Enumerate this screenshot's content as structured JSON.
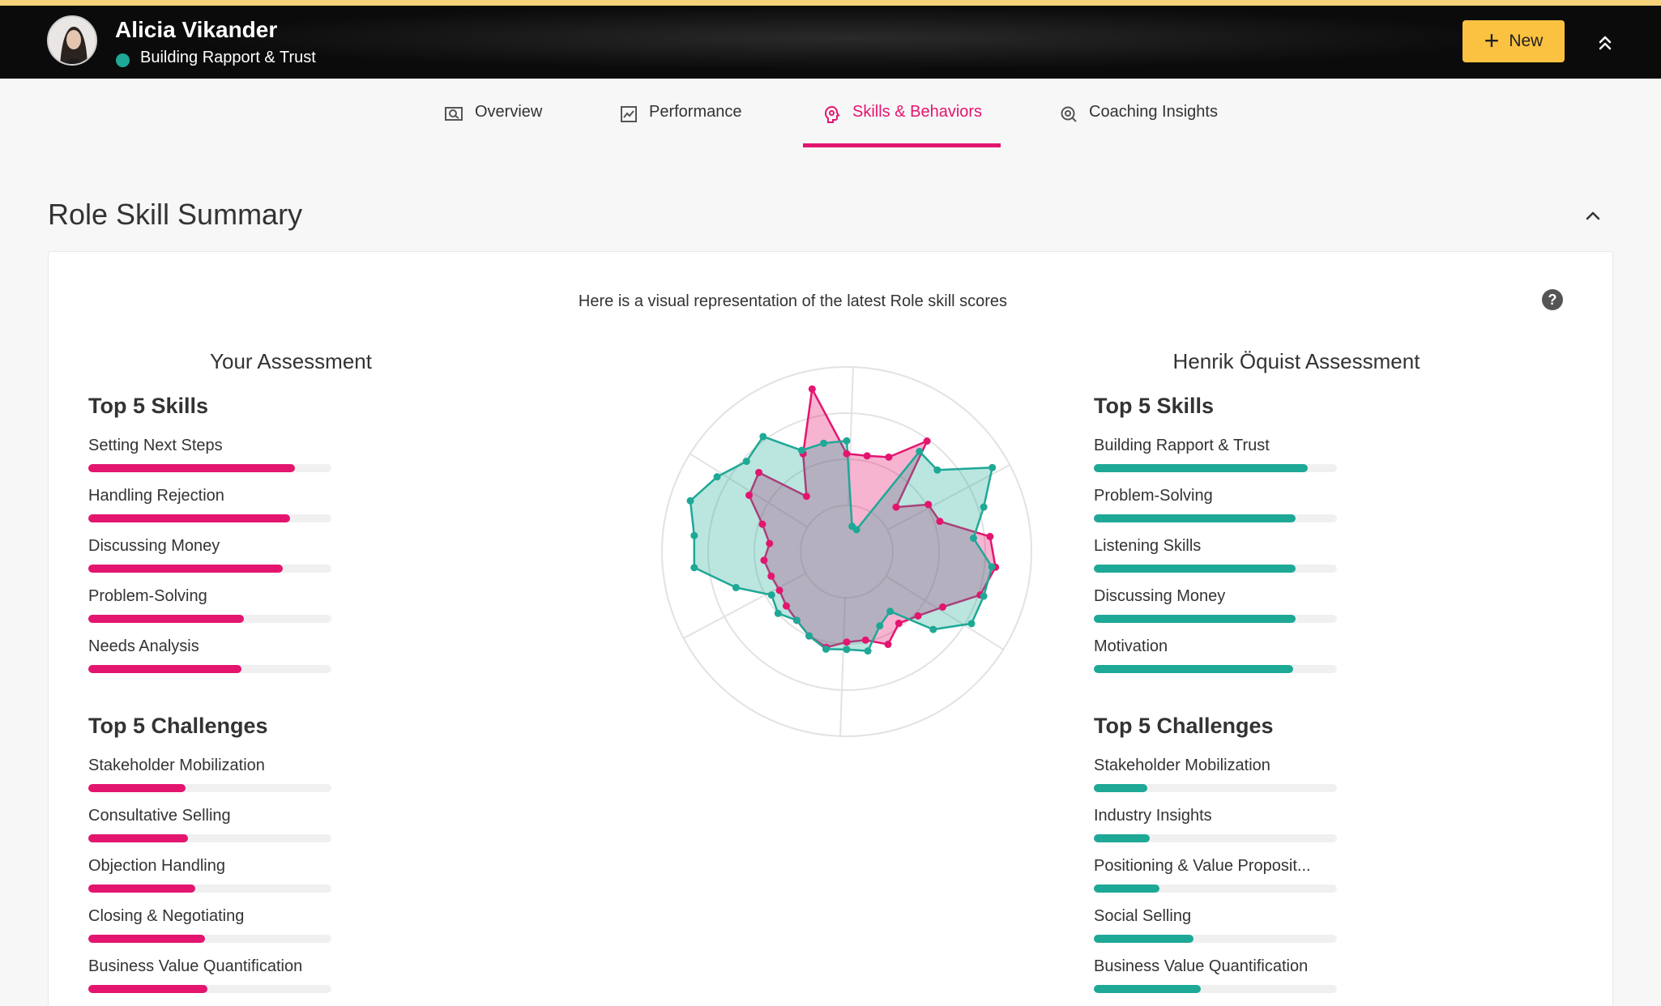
{
  "header": {
    "name": "Alicia Vikander",
    "subtitle": "Building Rapport & Trust",
    "status_color": "#1ea896",
    "new_label": "New"
  },
  "tabs": [
    {
      "label": "Overview",
      "icon": "overview-icon"
    },
    {
      "label": "Performance",
      "icon": "performance-icon"
    },
    {
      "label": "Skills & Behaviors",
      "icon": "skills-icon",
      "active": true
    },
    {
      "label": "Coaching Insights",
      "icon": "insights-icon"
    }
  ],
  "section": {
    "title": "Role Skill Summary",
    "intro": "Here is a visual representation of the latest Role skill scores",
    "help": "?"
  },
  "colors": {
    "accent": "#e3156f",
    "teal": "#1ea896",
    "button": "#fbc241"
  },
  "left": {
    "title": "Your Assessment",
    "skills_title": "Top 5 Skills",
    "challenges_title": "Top 5 Challenges",
    "skills": [
      {
        "label": "Setting Next Steps",
        "value": 0.85
      },
      {
        "label": "Handling Rejection",
        "value": 0.83
      },
      {
        "label": "Discussing Money",
        "value": 0.8
      },
      {
        "label": "Problem-Solving",
        "value": 0.64
      },
      {
        "label": "Needs Analysis",
        "value": 0.63
      }
    ],
    "challenges": [
      {
        "label": "Stakeholder Mobilization",
        "value": 0.4
      },
      {
        "label": "Consultative Selling",
        "value": 0.41
      },
      {
        "label": "Objection Handling",
        "value": 0.44
      },
      {
        "label": "Closing & Negotiating",
        "value": 0.48
      },
      {
        "label": "Business Value Quantification",
        "value": 0.49
      }
    ]
  },
  "right": {
    "title": "Henrik Öquist Assessment",
    "skills_title": "Top 5 Skills",
    "challenges_title": "Top 5 Challenges",
    "skills": [
      {
        "label": "Building Rapport & Trust",
        "value": 0.88
      },
      {
        "label": "Problem-Solving",
        "value": 0.83
      },
      {
        "label": "Listening Skills",
        "value": 0.83
      },
      {
        "label": "Discussing Money",
        "value": 0.83
      },
      {
        "label": "Motivation",
        "value": 0.82
      }
    ],
    "challenges": [
      {
        "label": "Stakeholder Mobilization",
        "value": 0.22
      },
      {
        "label": "Industry Insights",
        "value": 0.23
      },
      {
        "label": "Positioning & Value Proposit...",
        "value": 0.27
      },
      {
        "label": "Social Selling",
        "value": 0.41
      },
      {
        "label": "Business Value Quantification",
        "value": 0.44
      }
    ]
  },
  "chart_data": {
    "type": "radar",
    "rmax": 1,
    "rings": [
      0.25,
      0.5,
      0.75,
      1
    ],
    "axes": 30,
    "series": [
      {
        "color": "#e3156f",
        "values": [
          0.53,
          0.53,
          0.56,
          0.74,
          0.36,
          0.51,
          0.53,
          0.78,
          0.81,
          0.76,
          0.6,
          0.52,
          0.48,
          0.55,
          0.49,
          0.49,
          0.53,
          0.5,
          0.46,
          0.44,
          0.42,
          0.43,
          0.45,
          0.42,
          0.48,
          0.61,
          0.64,
          0.37,
          0.58,
          0.9
        ]
      },
      {
        "color": "#1ea896",
        "values": [
          0.6,
          0.14,
          0.13,
          0.67,
          0.66,
          0.91,
          0.78,
          0.69,
          0.79,
          0.78,
          0.78,
          0.63,
          0.4,
          0.44,
          0.55,
          0.53,
          0.54,
          0.5,
          0.46,
          0.5,
          0.47,
          0.63,
          0.83,
          0.83,
          0.89,
          0.81,
          0.73,
          0.77,
          0.6,
          0.6
        ]
      }
    ]
  }
}
